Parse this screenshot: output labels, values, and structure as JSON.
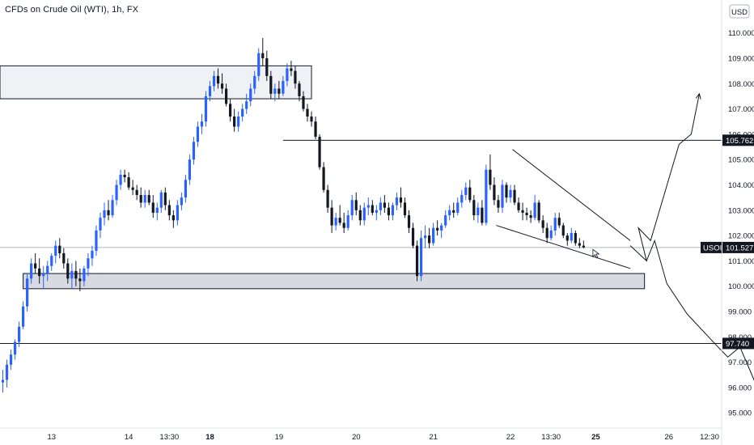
{
  "header": {
    "title": "CFDs on Crude Oil (WTI), 1h, FX"
  },
  "price_axis": {
    "currency": "USD"
  },
  "chart_data": {
    "type": "candlestick",
    "symbol": "USOIL",
    "title": "CFDs on Crude Oil (WTI), 1h, FX",
    "currency": "USD",
    "y_ticks": [
      "95.000",
      "96.000",
      "97.000",
      "98.000",
      "99.000",
      "100.000",
      "101.000",
      "102.000",
      "103.000",
      "104.000",
      "105.000",
      "106.000",
      "107.000",
      "108.000",
      "109.000",
      "110.000"
    ],
    "ylim": [
      94.4,
      111.3
    ],
    "x_ticks": [
      {
        "label": "13",
        "bar": 12,
        "bold": false
      },
      {
        "label": "14",
        "bar": 31,
        "bold": false
      },
      {
        "label": "13:30",
        "bar": 41,
        "bold": false
      },
      {
        "label": "18",
        "bar": 51,
        "bold": true
      },
      {
        "label": "19",
        "bar": 68,
        "bold": false
      },
      {
        "label": "20",
        "bar": 87,
        "bold": false
      },
      {
        "label": "21",
        "bar": 106,
        "bold": false
      },
      {
        "label": "22",
        "bar": 125,
        "bold": false
      },
      {
        "label": "13:30",
        "bar": 135,
        "bold": false
      },
      {
        "label": "25",
        "bar": 146,
        "bold": true
      },
      {
        "label": "26",
        "bar": 164,
        "bold": false
      },
      {
        "label": "12:30",
        "bar": 174,
        "bold": false
      }
    ],
    "colors": {
      "up": "#2962ff",
      "down": "#131722",
      "tag": "#131722",
      "zone_fill": "#d1d4dc"
    },
    "candles": [
      [
        96.2,
        96.7,
        95.8,
        96.3
      ],
      [
        96.3,
        97.1,
        96.0,
        96.9
      ],
      [
        96.9,
        97.5,
        96.7,
        97.3
      ],
      [
        97.3,
        97.9,
        97.1,
        97.8
      ],
      [
        97.8,
        98.6,
        97.6,
        98.4
      ],
      [
        98.4,
        99.4,
        98.3,
        99.2
      ],
      [
        99.2,
        100.5,
        99.0,
        100.3
      ],
      [
        100.3,
        101.1,
        100.1,
        100.9
      ],
      [
        100.9,
        101.3,
        100.5,
        100.7
      ],
      [
        100.7,
        101.1,
        100.1,
        100.4
      ],
      [
        100.4,
        100.8,
        99.9,
        100.5
      ],
      [
        100.5,
        101.0,
        100.2,
        100.8
      ],
      [
        100.8,
        101.3,
        100.6,
        101.2
      ],
      [
        101.2,
        101.8,
        100.9,
        101.6
      ],
      [
        101.6,
        101.9,
        101.1,
        101.3
      ],
      [
        101.3,
        101.5,
        100.7,
        100.9
      ],
      [
        100.9,
        101.1,
        100.1,
        100.3
      ],
      [
        100.3,
        100.9,
        99.9,
        100.6
      ],
      [
        100.6,
        101.0,
        100.0,
        100.3
      ],
      [
        100.3,
        100.7,
        99.8,
        100.2
      ],
      [
        100.2,
        100.8,
        100.0,
        100.7
      ],
      [
        100.7,
        101.3,
        100.4,
        101.1
      ],
      [
        101.1,
        101.6,
        100.8,
        101.4
      ],
      [
        101.4,
        102.4,
        101.2,
        102.2
      ],
      [
        102.2,
        102.9,
        101.9,
        102.7
      ],
      [
        102.7,
        103.3,
        102.4,
        103.0
      ],
      [
        103.0,
        103.4,
        102.6,
        102.8
      ],
      [
        102.8,
        103.6,
        102.7,
        103.4
      ],
      [
        103.4,
        104.2,
        103.2,
        104.0
      ],
      [
        104.0,
        104.6,
        103.8,
        104.4
      ],
      [
        104.4,
        104.6,
        104.1,
        104.3
      ],
      [
        104.3,
        104.5,
        103.8,
        103.9
      ],
      [
        103.9,
        104.2,
        103.6,
        103.8
      ],
      [
        103.8,
        104.0,
        103.4,
        103.6
      ],
      [
        103.6,
        103.9,
        103.1,
        103.3
      ],
      [
        103.3,
        103.8,
        103.1,
        103.6
      ],
      [
        103.6,
        103.8,
        103.2,
        103.3
      ],
      [
        103.3,
        103.6,
        102.7,
        102.9
      ],
      [
        102.9,
        103.3,
        102.6,
        103.1
      ],
      [
        103.1,
        103.8,
        102.9,
        103.7
      ],
      [
        103.7,
        103.9,
        103.0,
        103.2
      ],
      [
        103.2,
        103.4,
        102.6,
        102.8
      ],
      [
        102.8,
        103.0,
        102.3,
        102.6
      ],
      [
        102.6,
        103.4,
        102.4,
        103.2
      ],
      [
        103.2,
        103.7,
        103.0,
        103.5
      ],
      [
        103.5,
        104.4,
        103.3,
        104.2
      ],
      [
        104.2,
        105.2,
        104.0,
        105.0
      ],
      [
        105.0,
        105.9,
        104.8,
        105.7
      ],
      [
        105.7,
        106.5,
        105.5,
        106.3
      ],
      [
        106.3,
        106.8,
        106.0,
        106.5
      ],
      [
        106.5,
        107.7,
        106.3,
        107.5
      ],
      [
        107.5,
        108.1,
        107.3,
        107.9
      ],
      [
        107.9,
        108.5,
        107.7,
        108.3
      ],
      [
        108.3,
        108.6,
        107.8,
        108.0
      ],
      [
        108.0,
        108.4,
        107.6,
        107.8
      ],
      [
        107.8,
        108.0,
        107.1,
        107.2
      ],
      [
        107.2,
        107.4,
        106.5,
        106.7
      ],
      [
        106.7,
        107.0,
        106.1,
        106.3
      ],
      [
        106.3,
        106.9,
        106.1,
        106.7
      ],
      [
        106.7,
        107.2,
        106.5,
        107.0
      ],
      [
        107.0,
        107.6,
        106.8,
        107.3
      ],
      [
        107.3,
        108.0,
        107.1,
        107.8
      ],
      [
        107.8,
        108.5,
        107.6,
        108.3
      ],
      [
        108.3,
        109.4,
        108.1,
        109.2
      ],
      [
        109.2,
        109.8,
        108.7,
        109.0
      ],
      [
        109.0,
        109.3,
        108.1,
        108.3
      ],
      [
        108.3,
        108.5,
        107.4,
        107.6
      ],
      [
        107.6,
        108.0,
        107.3,
        107.8
      ],
      [
        107.8,
        108.1,
        107.4,
        107.6
      ],
      [
        107.6,
        108.3,
        107.5,
        108.1
      ],
      [
        108.1,
        108.8,
        107.9,
        108.6
      ],
      [
        108.6,
        108.9,
        108.3,
        108.5
      ],
      [
        108.5,
        108.7,
        107.8,
        108.0
      ],
      [
        108.0,
        108.1,
        107.3,
        107.5
      ],
      [
        107.5,
        107.7,
        106.9,
        107.0
      ],
      [
        107.0,
        107.2,
        106.5,
        106.7
      ],
      [
        106.7,
        106.9,
        106.3,
        106.5
      ],
      [
        106.5,
        106.7,
        105.8,
        105.9
      ],
      [
        105.9,
        106.0,
        104.6,
        104.7
      ],
      [
        104.7,
        104.9,
        103.7,
        103.8
      ],
      [
        103.8,
        104.0,
        102.9,
        103.1
      ],
      [
        103.1,
        103.4,
        102.1,
        102.4
      ],
      [
        102.4,
        102.9,
        102.2,
        102.7
      ],
      [
        102.7,
        103.2,
        102.4,
        102.5
      ],
      [
        102.5,
        102.9,
        102.1,
        102.3
      ],
      [
        102.3,
        103.0,
        102.2,
        102.8
      ],
      [
        102.8,
        103.6,
        102.6,
        103.4
      ],
      [
        103.4,
        103.7,
        102.8,
        103.0
      ],
      [
        103.0,
        103.2,
        102.4,
        102.6
      ],
      [
        102.6,
        103.3,
        102.4,
        103.1
      ],
      [
        103.1,
        103.5,
        102.8,
        103.2
      ],
      [
        103.2,
        103.4,
        102.8,
        102.9
      ],
      [
        102.9,
        103.2,
        102.6,
        103.0
      ],
      [
        103.0,
        103.5,
        102.8,
        103.3
      ],
      [
        103.3,
        103.6,
        102.9,
        103.1
      ],
      [
        103.1,
        103.3,
        102.6,
        102.8
      ],
      [
        102.8,
        103.3,
        102.6,
        103.2
      ],
      [
        103.2,
        103.7,
        103.0,
        103.5
      ],
      [
        103.5,
        103.9,
        103.1,
        103.3
      ],
      [
        103.3,
        103.5,
        102.7,
        102.8
      ],
      [
        102.8,
        103.0,
        102.1,
        102.3
      ],
      [
        102.3,
        102.5,
        101.5,
        101.6
      ],
      [
        101.6,
        101.8,
        100.2,
        100.4
      ],
      [
        100.4,
        102.2,
        100.2,
        101.9
      ],
      [
        101.9,
        102.4,
        101.5,
        102.0
      ],
      [
        102.0,
        102.3,
        101.5,
        101.7
      ],
      [
        101.7,
        102.5,
        101.6,
        102.3
      ],
      [
        102.3,
        102.6,
        102.0,
        102.2
      ],
      [
        102.2,
        102.5,
        101.9,
        102.4
      ],
      [
        102.4,
        103.0,
        102.3,
        102.8
      ],
      [
        102.8,
        103.2,
        102.6,
        103.0
      ],
      [
        103.0,
        103.3,
        102.7,
        102.9
      ],
      [
        102.9,
        103.5,
        102.8,
        103.3
      ],
      [
        103.3,
        103.8,
        103.1,
        103.6
      ],
      [
        103.6,
        104.1,
        103.4,
        103.9
      ],
      [
        103.9,
        104.2,
        103.3,
        103.4
      ],
      [
        103.4,
        103.6,
        102.6,
        102.8
      ],
      [
        102.8,
        103.3,
        102.5,
        103.1
      ],
      [
        103.1,
        103.4,
        102.4,
        102.5
      ],
      [
        102.5,
        104.8,
        102.4,
        104.6
      ],
      [
        104.6,
        105.2,
        103.8,
        104.0
      ],
      [
        104.0,
        104.3,
        103.2,
        103.4
      ],
      [
        103.4,
        103.6,
        102.9,
        103.1
      ],
      [
        103.1,
        104.2,
        102.9,
        104.0
      ],
      [
        104.0,
        104.1,
        103.3,
        103.5
      ],
      [
        103.5,
        104.0,
        103.3,
        103.8
      ],
      [
        103.8,
        104.0,
        103.2,
        103.3
      ],
      [
        103.3,
        103.5,
        102.9,
        103.0
      ],
      [
        103.0,
        103.3,
        102.6,
        102.9
      ],
      [
        102.9,
        103.1,
        102.6,
        102.8
      ],
      [
        102.8,
        103.0,
        102.5,
        102.7
      ],
      [
        102.7,
        103.6,
        102.6,
        103.3
      ],
      [
        103.3,
        103.4,
        102.5,
        102.6
      ],
      [
        102.6,
        102.8,
        102.1,
        102.3
      ],
      [
        102.3,
        102.5,
        101.7,
        101.9
      ],
      [
        101.9,
        102.4,
        101.8,
        102.2
      ],
      [
        102.2,
        102.9,
        102.0,
        102.7
      ],
      [
        102.7,
        102.9,
        102.3,
        102.4
      ],
      [
        102.4,
        102.5,
        101.9,
        102.0
      ],
      [
        102.0,
        102.1,
        101.6,
        101.8
      ],
      [
        101.8,
        102.3,
        101.7,
        102.1
      ],
      [
        102.1,
        102.2,
        101.6,
        101.7
      ],
      [
        101.7,
        101.9,
        101.5,
        101.6
      ],
      [
        101.6,
        101.8,
        101.5,
        101.53
      ]
    ],
    "levels": [
      {
        "price": 105.762,
        "label": "105.762"
      },
      {
        "price": 97.74,
        "label": "97.740"
      }
    ],
    "last_price": {
      "price": 101.527,
      "symbol": "USOIL",
      "label": "101.527"
    },
    "zones": [
      {
        "name": "resistance-zone",
        "from_bar": -5,
        "to_bar": 76,
        "top": 108.7,
        "bottom": 107.4
      },
      {
        "name": "support-zone",
        "from_bar": 5,
        "to_bar": 158,
        "top": 100.5,
        "bottom": 99.9
      }
    ],
    "wedge": {
      "upper": [
        [
          125.5,
          105.4
        ],
        [
          154.5,
          101.8
        ]
      ],
      "lower": [
        [
          121.5,
          102.4
        ],
        [
          154.5,
          100.7
        ]
      ]
    },
    "scenario_up": [
      [
        154.5,
        101.6
      ],
      [
        158.5,
        101.0
      ],
      [
        156.5,
        102.3
      ],
      [
        159.5,
        101.8
      ],
      [
        166.5,
        105.6
      ],
      [
        169.5,
        106.0
      ],
      [
        171.5,
        107.6
      ]
    ],
    "scenario_down": [
      [
        158.5,
        101.0
      ],
      [
        160.5,
        101.8
      ],
      [
        163.5,
        100.1
      ],
      [
        168.5,
        98.9
      ],
      [
        175.5,
        97.7
      ],
      [
        178.5,
        97.2
      ],
      [
        181.5,
        97.6
      ],
      [
        189.5,
        94.6
      ]
    ]
  }
}
